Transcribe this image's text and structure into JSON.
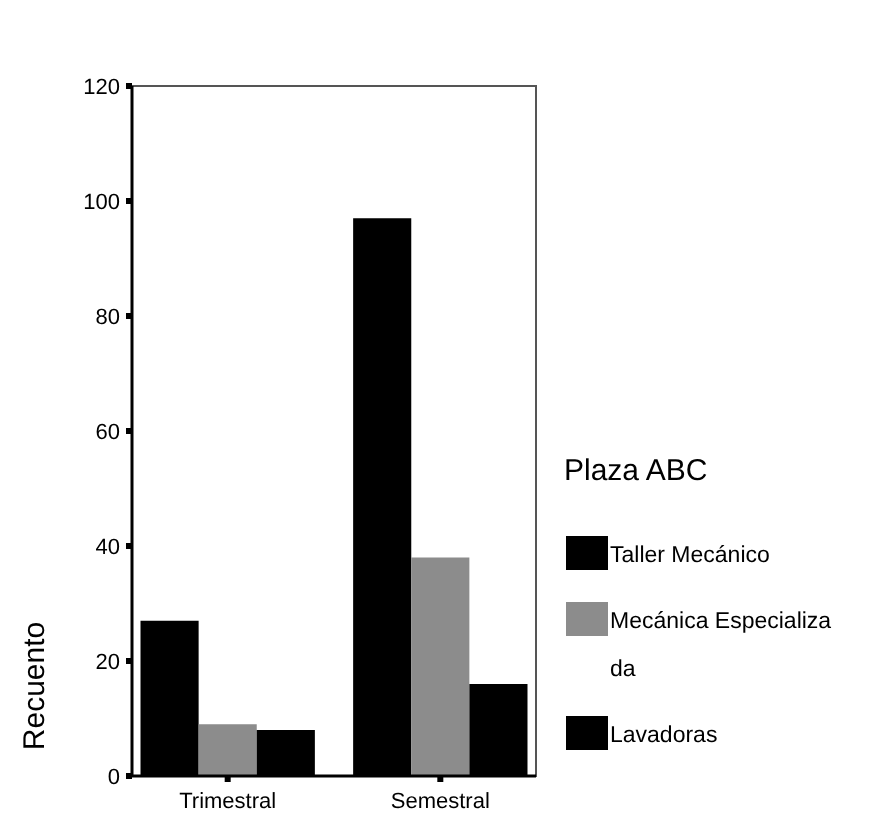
{
  "chart_data": {
    "type": "bar",
    "categories": [
      "Trimestral",
      "Semestral"
    ],
    "series": [
      {
        "name": "Taller Mecánico",
        "color": "#000000",
        "values": [
          27,
          97
        ]
      },
      {
        "name": "Mecánica Especializada",
        "color": "#8c8c8c",
        "values": [
          9,
          38
        ]
      },
      {
        "name": "Lavadoras",
        "color": "#000000",
        "values": [
          8,
          16
        ]
      }
    ],
    "ylabel": "Recuento",
    "legend_title": "Plaza ABC",
    "legend": "right",
    "grid": false,
    "ylim": [
      0,
      120
    ],
    "yticks": [
      0,
      20,
      40,
      60,
      80,
      100,
      120
    ]
  }
}
